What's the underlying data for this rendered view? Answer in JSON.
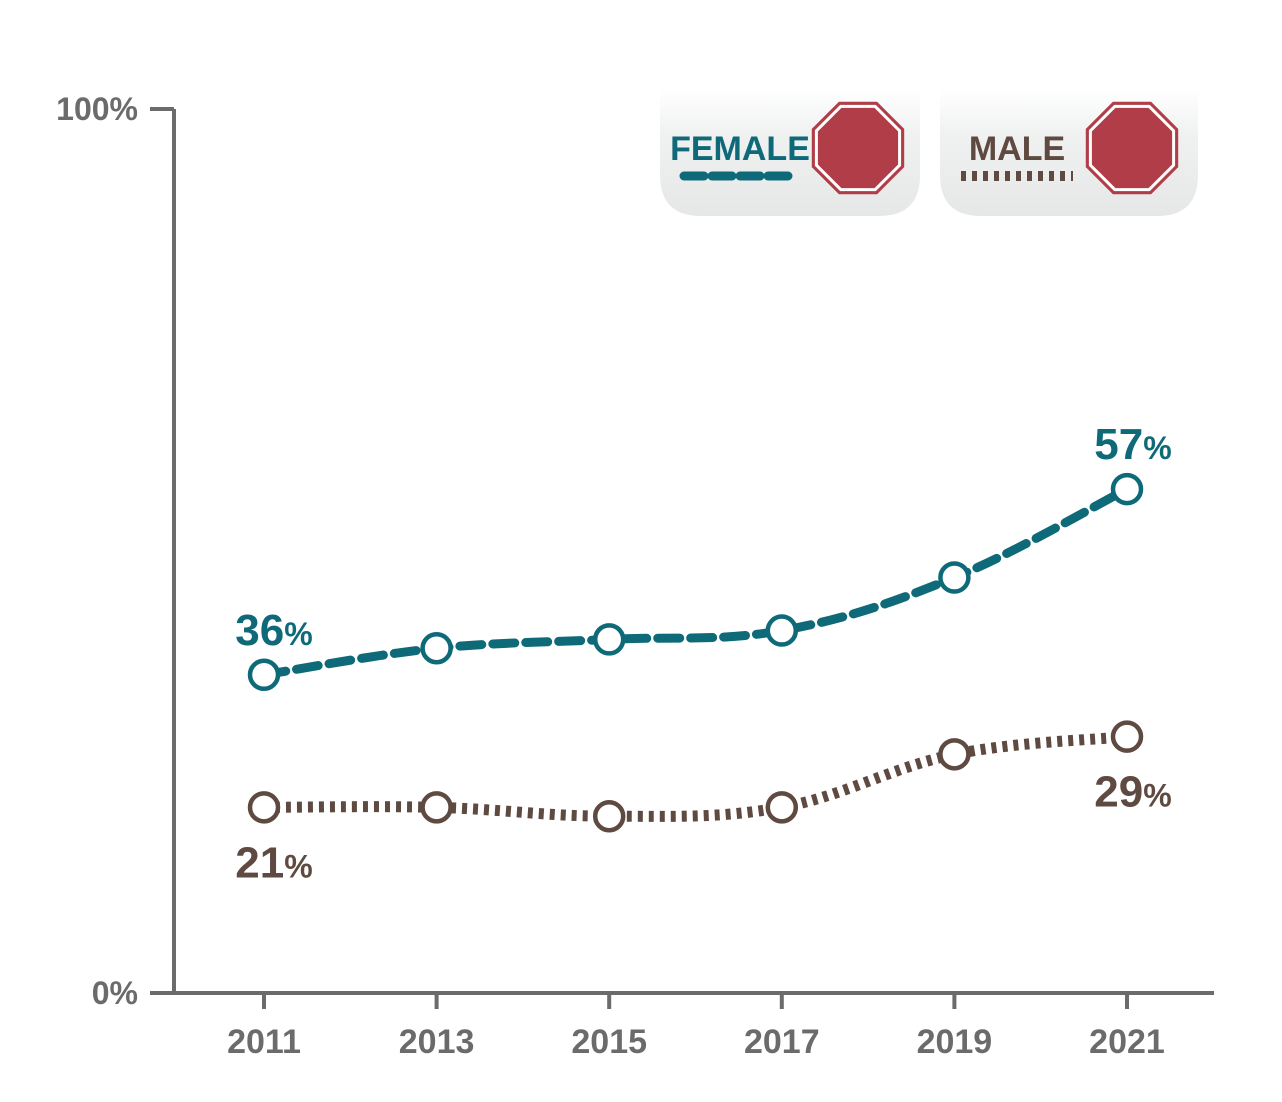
{
  "chart_data": {
    "type": "line",
    "x": [
      "2011",
      "2013",
      "2015",
      "2017",
      "2019",
      "2021"
    ],
    "series": [
      {
        "name": "FEMALE",
        "values": [
          36,
          39,
          40,
          41,
          47,
          57
        ],
        "color": "#0e6a78",
        "line_style": "dashed",
        "labels": [
          {
            "index": 0,
            "value": "36",
            "unit": "%",
            "position": "above"
          },
          {
            "index": 5,
            "value": "57",
            "unit": "%",
            "position": "above"
          }
        ]
      },
      {
        "name": "MALE",
        "values": [
          21,
          21,
          20,
          21,
          27,
          29
        ],
        "color": "#5e4a40",
        "line_style": "dotted",
        "labels": [
          {
            "index": 0,
            "value": "21",
            "unit": "%",
            "position": "below"
          },
          {
            "index": 5,
            "value": "29",
            "unit": "%",
            "position": "below"
          }
        ]
      }
    ],
    "ylim": [
      0,
      100
    ],
    "y_tick_labels": [
      "0%",
      "100%"
    ],
    "title": "",
    "xlabel": "",
    "ylabel": "",
    "grid": false,
    "legend_placement": "top-right",
    "legend_icon": "stop-sign-octagon-icon",
    "stop_sign_color": "#b03d48",
    "axis_color": "#6b6b6b"
  }
}
